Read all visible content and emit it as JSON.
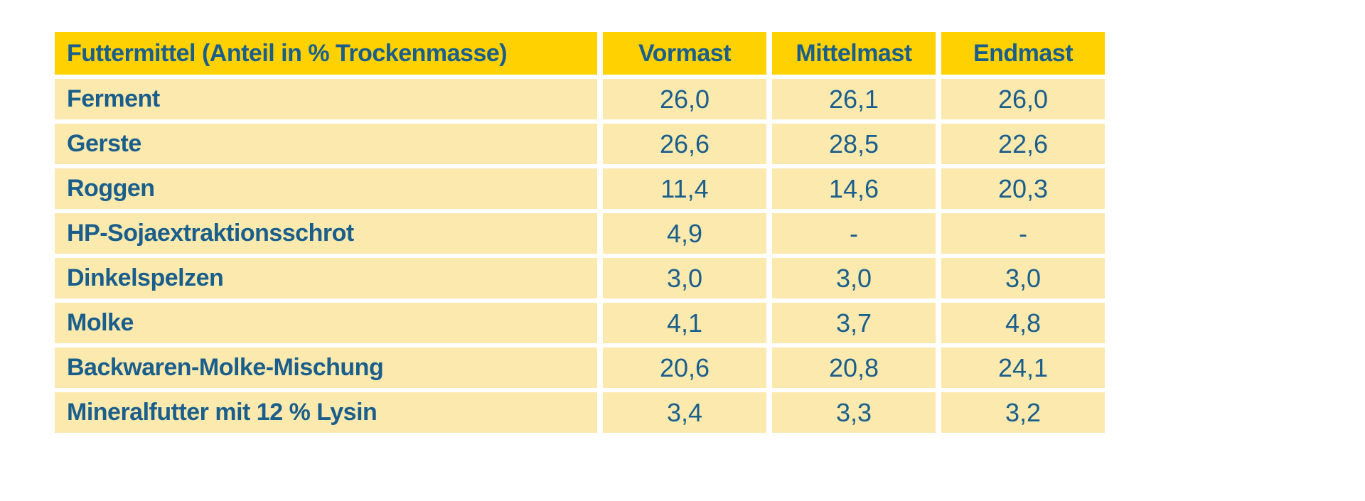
{
  "colors": {
    "page_bg": "#FFFFFF",
    "header_bg": "#FFD100",
    "row_bg": "#FCE9AD",
    "text_blue": "#1A5E8C",
    "gap_white": "#FFFFFF"
  },
  "table": {
    "header": [
      "Futtermittel (Anteil in % Trockenmasse)",
      "Vormast",
      "Mittelmast",
      "Endmast"
    ],
    "rows": [
      {
        "label": "Ferment",
        "values": [
          "26,0",
          "26,1",
          "26,0"
        ]
      },
      {
        "label": "Gerste",
        "values": [
          "26,6",
          "28,5",
          "22,6"
        ]
      },
      {
        "label": "Roggen",
        "values": [
          "11,4",
          "14,6",
          "20,3"
        ]
      },
      {
        "label": "HP-Sojaextraktionsschrot",
        "values": [
          "4,9",
          "-",
          "-"
        ]
      },
      {
        "label": "Dinkelspelzen",
        "values": [
          "3,0",
          "3,0",
          "3,0"
        ]
      },
      {
        "label": "Molke",
        "values": [
          "4,1",
          "3,7",
          "4,8"
        ]
      },
      {
        "label": "Backwaren-Molke-Mischung",
        "values": [
          "20,6",
          "20,8",
          "24,1"
        ]
      },
      {
        "label": "Mineralfutter mit 12 % Lysin",
        "values": [
          "3,4",
          "3,3",
          "3,2"
        ]
      }
    ]
  },
  "chart_data": {
    "type": "table",
    "title": "Futtermittel (Anteil in % Trockenmasse)",
    "columns": [
      "Futtermittel (Anteil in % Trockenmasse)",
      "Vormast",
      "Mittelmast",
      "Endmast"
    ],
    "rows": [
      [
        "Ferment",
        26.0,
        26.1,
        26.0
      ],
      [
        "Gerste",
        26.6,
        28.5,
        22.6
      ],
      [
        "Roggen",
        11.4,
        14.6,
        20.3
      ],
      [
        "HP-Sojaextraktionsschrot",
        4.9,
        null,
        null
      ],
      [
        "Dinkelspelzen",
        3.0,
        3.0,
        3.0
      ],
      [
        "Molke",
        4.1,
        3.7,
        4.8
      ],
      [
        "Backwaren-Molke-Mischung",
        20.6,
        20.8,
        24.1
      ],
      [
        "Mineralfutter mit 12 % Lysin",
        3.4,
        3.3,
        3.2
      ]
    ],
    "missing_marker": "-",
    "value_unit": "% Trockenmasse",
    "layout_hints": {
      "header_background": "#FFD100",
      "row_background": "#FCE9AD",
      "text_color": "#1A5E8C",
      "first_column_align": "left",
      "value_columns_align": "center",
      "grid": "white gaps between cells, no visible borders"
    }
  }
}
